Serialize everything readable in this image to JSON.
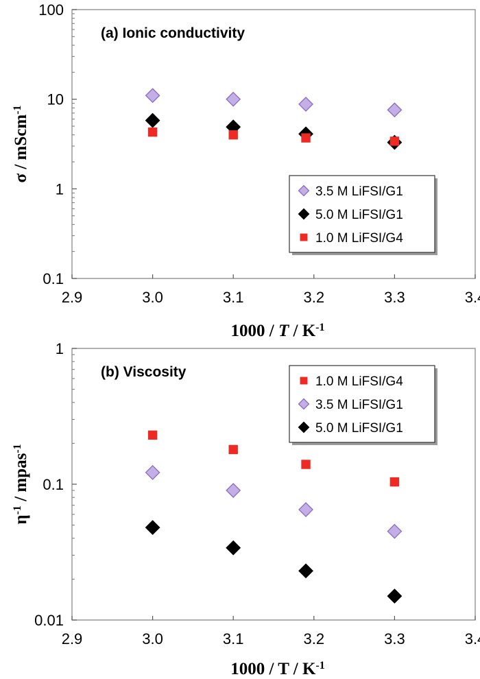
{
  "chart_data": [
    {
      "type": "scatter",
      "title": "(a) Ionic conductivity",
      "xlabel_parts": [
        "1000 / ",
        "T",
        " / K",
        "-1"
      ],
      "ylabel_parts": [
        "σ / mScm",
        "-1"
      ],
      "xlim": [
        2.9,
        3.4
      ],
      "ylim": [
        0.1,
        100
      ],
      "yscale": "log",
      "xticks": [
        "2.9",
        "3.0",
        "3.1",
        "3.2",
        "3.3",
        "3.4"
      ],
      "yticks": [
        "0.1",
        "1",
        "10",
        "100"
      ],
      "legend_position": "lower-right",
      "series": [
        {
          "name": "3.5 M LiFSI/G1",
          "marker": "diamond",
          "color": "#c4aee6",
          "edge": "#8a6cc0",
          "x": [
            3.0,
            3.1,
            3.19,
            3.3
          ],
          "y": [
            11.0,
            10.0,
            8.8,
            7.6
          ]
        },
        {
          "name": "5.0 M LiFSI/G1",
          "marker": "diamond",
          "color": "#000000",
          "edge": "#000000",
          "x": [
            3.0,
            3.1,
            3.19,
            3.3
          ],
          "y": [
            5.8,
            4.9,
            4.1,
            3.3
          ]
        },
        {
          "name": "1.0 M LiFSI/G4",
          "marker": "square",
          "color": "#ee2a24",
          "edge": "#ee2a24",
          "x": [
            3.0,
            3.1,
            3.19,
            3.3
          ],
          "y": [
            4.3,
            4.0,
            3.7,
            3.4
          ]
        }
      ]
    },
    {
      "type": "scatter",
      "title": "(b) Viscosity",
      "xlabel_parts": [
        "1000 / T / K",
        "-1"
      ],
      "ylabel_parts": [
        "η",
        "-1",
        " / mpas",
        "-1"
      ],
      "xlim": [
        2.9,
        3.4
      ],
      "ylim": [
        0.01,
        1
      ],
      "yscale": "log",
      "xticks": [
        "2.9",
        "3.0",
        "3.1",
        "3.2",
        "3.3",
        "3.4"
      ],
      "yticks": [
        "0.01",
        "0.1",
        "1"
      ],
      "legend_position": "top-right",
      "series": [
        {
          "name": "1.0 M LiFSI/G4",
          "marker": "square",
          "color": "#ee2a24",
          "edge": "#ee2a24",
          "x": [
            3.0,
            3.1,
            3.19,
            3.3
          ],
          "y": [
            0.23,
            0.18,
            0.14,
            0.104
          ]
        },
        {
          "name": "3.5 M LiFSI/G1",
          "marker": "diamond",
          "color": "#c4aee6",
          "edge": "#8a6cc0",
          "x": [
            3.0,
            3.1,
            3.19,
            3.3
          ],
          "y": [
            0.122,
            0.09,
            0.065,
            0.045
          ]
        },
        {
          "name": "5.0 M LiFSI/G1",
          "marker": "diamond",
          "color": "#000000",
          "edge": "#000000",
          "x": [
            3.0,
            3.1,
            3.19,
            3.3
          ],
          "y": [
            0.048,
            0.034,
            0.023,
            0.015
          ]
        }
      ]
    }
  ]
}
